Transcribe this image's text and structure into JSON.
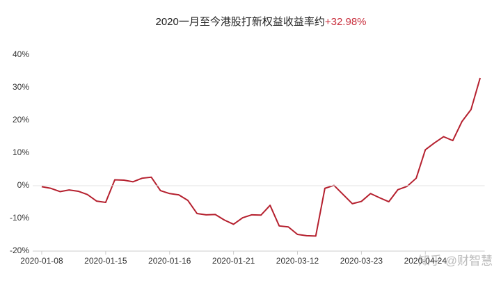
{
  "chart_data": {
    "type": "line",
    "title": "2020一月至今港股打新权益收益率约",
    "title_value": "+32.98%",
    "title_value_color": "#c9303e",
    "watermark": "知乎 @财智慧",
    "color": "#b5202e",
    "categories": [
      "2020-01-08",
      null,
      null,
      null,
      null,
      null,
      null,
      "2020-01-15",
      null,
      null,
      null,
      null,
      null,
      null,
      "2020-01-16",
      null,
      null,
      null,
      null,
      null,
      null,
      "2020-01-21",
      null,
      null,
      null,
      null,
      null,
      null,
      "2020-03-12",
      null,
      null,
      null,
      null,
      null,
      null,
      "2020-03-23",
      null,
      null,
      null,
      null,
      null,
      null,
      "2020-04-24",
      null,
      null,
      null,
      null,
      null,
      null
    ],
    "values": [
      -0.3,
      -0.8,
      -1.8,
      -1.3,
      -1.7,
      -2.7,
      -4.7,
      -5.1,
      1.8,
      1.7,
      1.2,
      2.3,
      2.6,
      -1.5,
      -2.4,
      -2.8,
      -4.5,
      -8.5,
      -8.9,
      -8.8,
      -10.5,
      -11.8,
      -9.8,
      -8.9,
      -9.0,
      -6.0,
      -12.3,
      -12.6,
      -14.9,
      -15.3,
      -15.4,
      -0.8,
      0.1,
      -2.7,
      -5.5,
      -4.8,
      -2.4,
      -3.7,
      -4.9,
      -1.2,
      -0.2,
      2.3,
      11.0,
      13.1,
      15.0,
      13.8,
      19.6,
      23.3,
      32.98
    ],
    "ylim": [
      -20,
      40
    ],
    "yticks": [
      {
        "value": -20,
        "label": "-20%"
      },
      {
        "value": -10,
        "label": "-10%"
      },
      {
        "value": 0,
        "label": "0%"
      },
      {
        "value": 10,
        "label": "10%"
      },
      {
        "value": 20,
        "label": "20%"
      },
      {
        "value": 30,
        "label": "30%"
      },
      {
        "value": 40,
        "label": "40%"
      }
    ],
    "grid": false
  }
}
